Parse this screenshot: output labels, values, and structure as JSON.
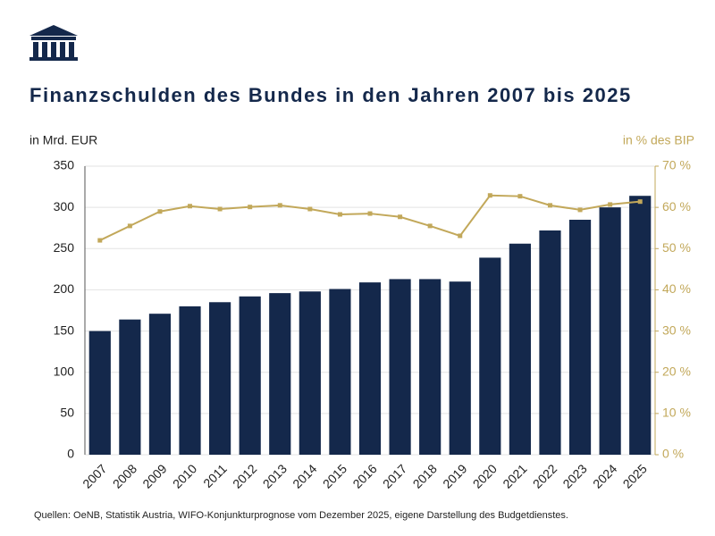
{
  "chart_data": {
    "type": "bar-line",
    "title": "Finanzschulden des Bundes in den Jahren 2007 bis 2025",
    "y_label": "in Mrd. EUR",
    "y2_label": "in % des BIP",
    "source": "Quellen: OeNB, Statistik Austria, WIFO-Konjunkturprognose vom Dezember 2025, eigene Darstellung des Budgetdienstes.",
    "categories": [
      "2007",
      "2008",
      "2009",
      "2010",
      "2011",
      "2012",
      "2013",
      "2014",
      "2015",
      "2016",
      "2017",
      "2018",
      "2019",
      "2020",
      "2021",
      "2022",
      "2023",
      "2024",
      "2025"
    ],
    "series": [
      {
        "type": "bar",
        "color": "#14284b",
        "values": [
          150,
          164,
          171,
          180,
          185,
          192,
          196,
          198,
          201,
          209,
          213,
          213,
          210,
          239,
          256,
          272,
          285,
          300,
          314
        ]
      },
      {
        "type": "line",
        "axis": "y2",
        "color": "#c2a85a",
        "values": [
          52,
          55.5,
          59,
          60.3,
          59.6,
          60.1,
          60.5,
          59.6,
          58.3,
          58.5,
          57.7,
          55.5,
          53.1,
          62.9,
          62.7,
          60.5,
          59.4,
          60.7,
          61.4
        ]
      }
    ],
    "ylim": [
      0,
      350
    ],
    "yticks": [
      0,
      50,
      100,
      150,
      200,
      250,
      300,
      350
    ],
    "y2lim": [
      0,
      70
    ],
    "y2ticks": [
      {
        "value": 0,
        "label": "0 %"
      },
      {
        "value": 10,
        "label": "10 %"
      },
      {
        "value": 20,
        "label": "20 %"
      },
      {
        "value": 30,
        "label": "30 %"
      },
      {
        "value": 40,
        "label": "40 %"
      },
      {
        "value": 50,
        "label": "50 %"
      },
      {
        "value": 60,
        "label": "60 %"
      },
      {
        "value": 70,
        "label": "70 %"
      }
    ],
    "grid": true
  }
}
